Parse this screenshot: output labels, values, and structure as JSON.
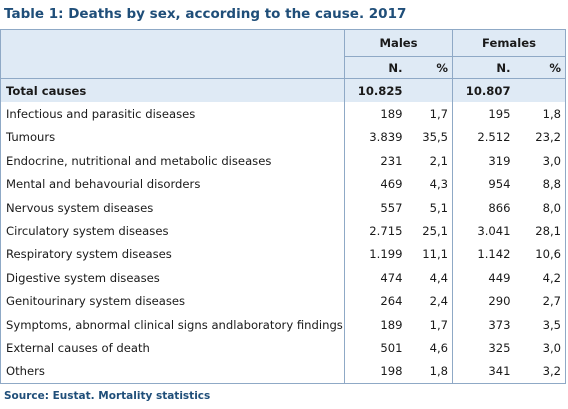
{
  "title": "Table 1: Deaths by sex, according to the cause. 2017",
  "headers": {
    "males": "Males",
    "females": "Females",
    "n": "N.",
    "pct": "%"
  },
  "total": {
    "label": "Total causes",
    "males_n": "10.825",
    "females_n": "10.807"
  },
  "rows": [
    {
      "cause": "Infectious and parasitic diseases",
      "m_n": "189",
      "m_pct": "1,7",
      "f_n": "195",
      "f_pct": "1,8"
    },
    {
      "cause": "Tumours",
      "m_n": "3.839",
      "m_pct": "35,5",
      "f_n": "2.512",
      "f_pct": "23,2"
    },
    {
      "cause": "Endocrine, nutritional and metabolic diseases",
      "m_n": "231",
      "m_pct": "2,1",
      "f_n": "319",
      "f_pct": "3,0"
    },
    {
      "cause": "Mental and behavourial disorders",
      "m_n": "469",
      "m_pct": "4,3",
      "f_n": "954",
      "f_pct": "8,8"
    },
    {
      "cause": "Nervous system diseases",
      "m_n": "557",
      "m_pct": "5,1",
      "f_n": "866",
      "f_pct": "8,0"
    },
    {
      "cause": "Circulatory system diseases",
      "m_n": "2.715",
      "m_pct": "25,1",
      "f_n": "3.041",
      "f_pct": "28,1"
    },
    {
      "cause": "Respiratory system diseases",
      "m_n": "1.199",
      "m_pct": "11,1",
      "f_n": "1.142",
      "f_pct": "10,6"
    },
    {
      "cause": "Digestive system diseases",
      "m_n": "474",
      "m_pct": "4,4",
      "f_n": "449",
      "f_pct": "4,2"
    },
    {
      "cause": "Genitourinary system diseases",
      "m_n": "264",
      "m_pct": "2,4",
      "f_n": "290",
      "f_pct": "2,7"
    },
    {
      "cause": "Symptoms, abnormal clinical signs andlaboratory findings",
      "m_n": "189",
      "m_pct": "1,7",
      "f_n": "373",
      "f_pct": "3,5"
    },
    {
      "cause": "External causes of death",
      "m_n": "501",
      "m_pct": "4,6",
      "f_n": "325",
      "f_pct": "3,0"
    },
    {
      "cause": "Others",
      "m_n": "198",
      "m_pct": "1,8",
      "f_n": "341",
      "f_pct": "3,2"
    }
  ],
  "source": "Source: Eustat. Mortality statistics"
}
